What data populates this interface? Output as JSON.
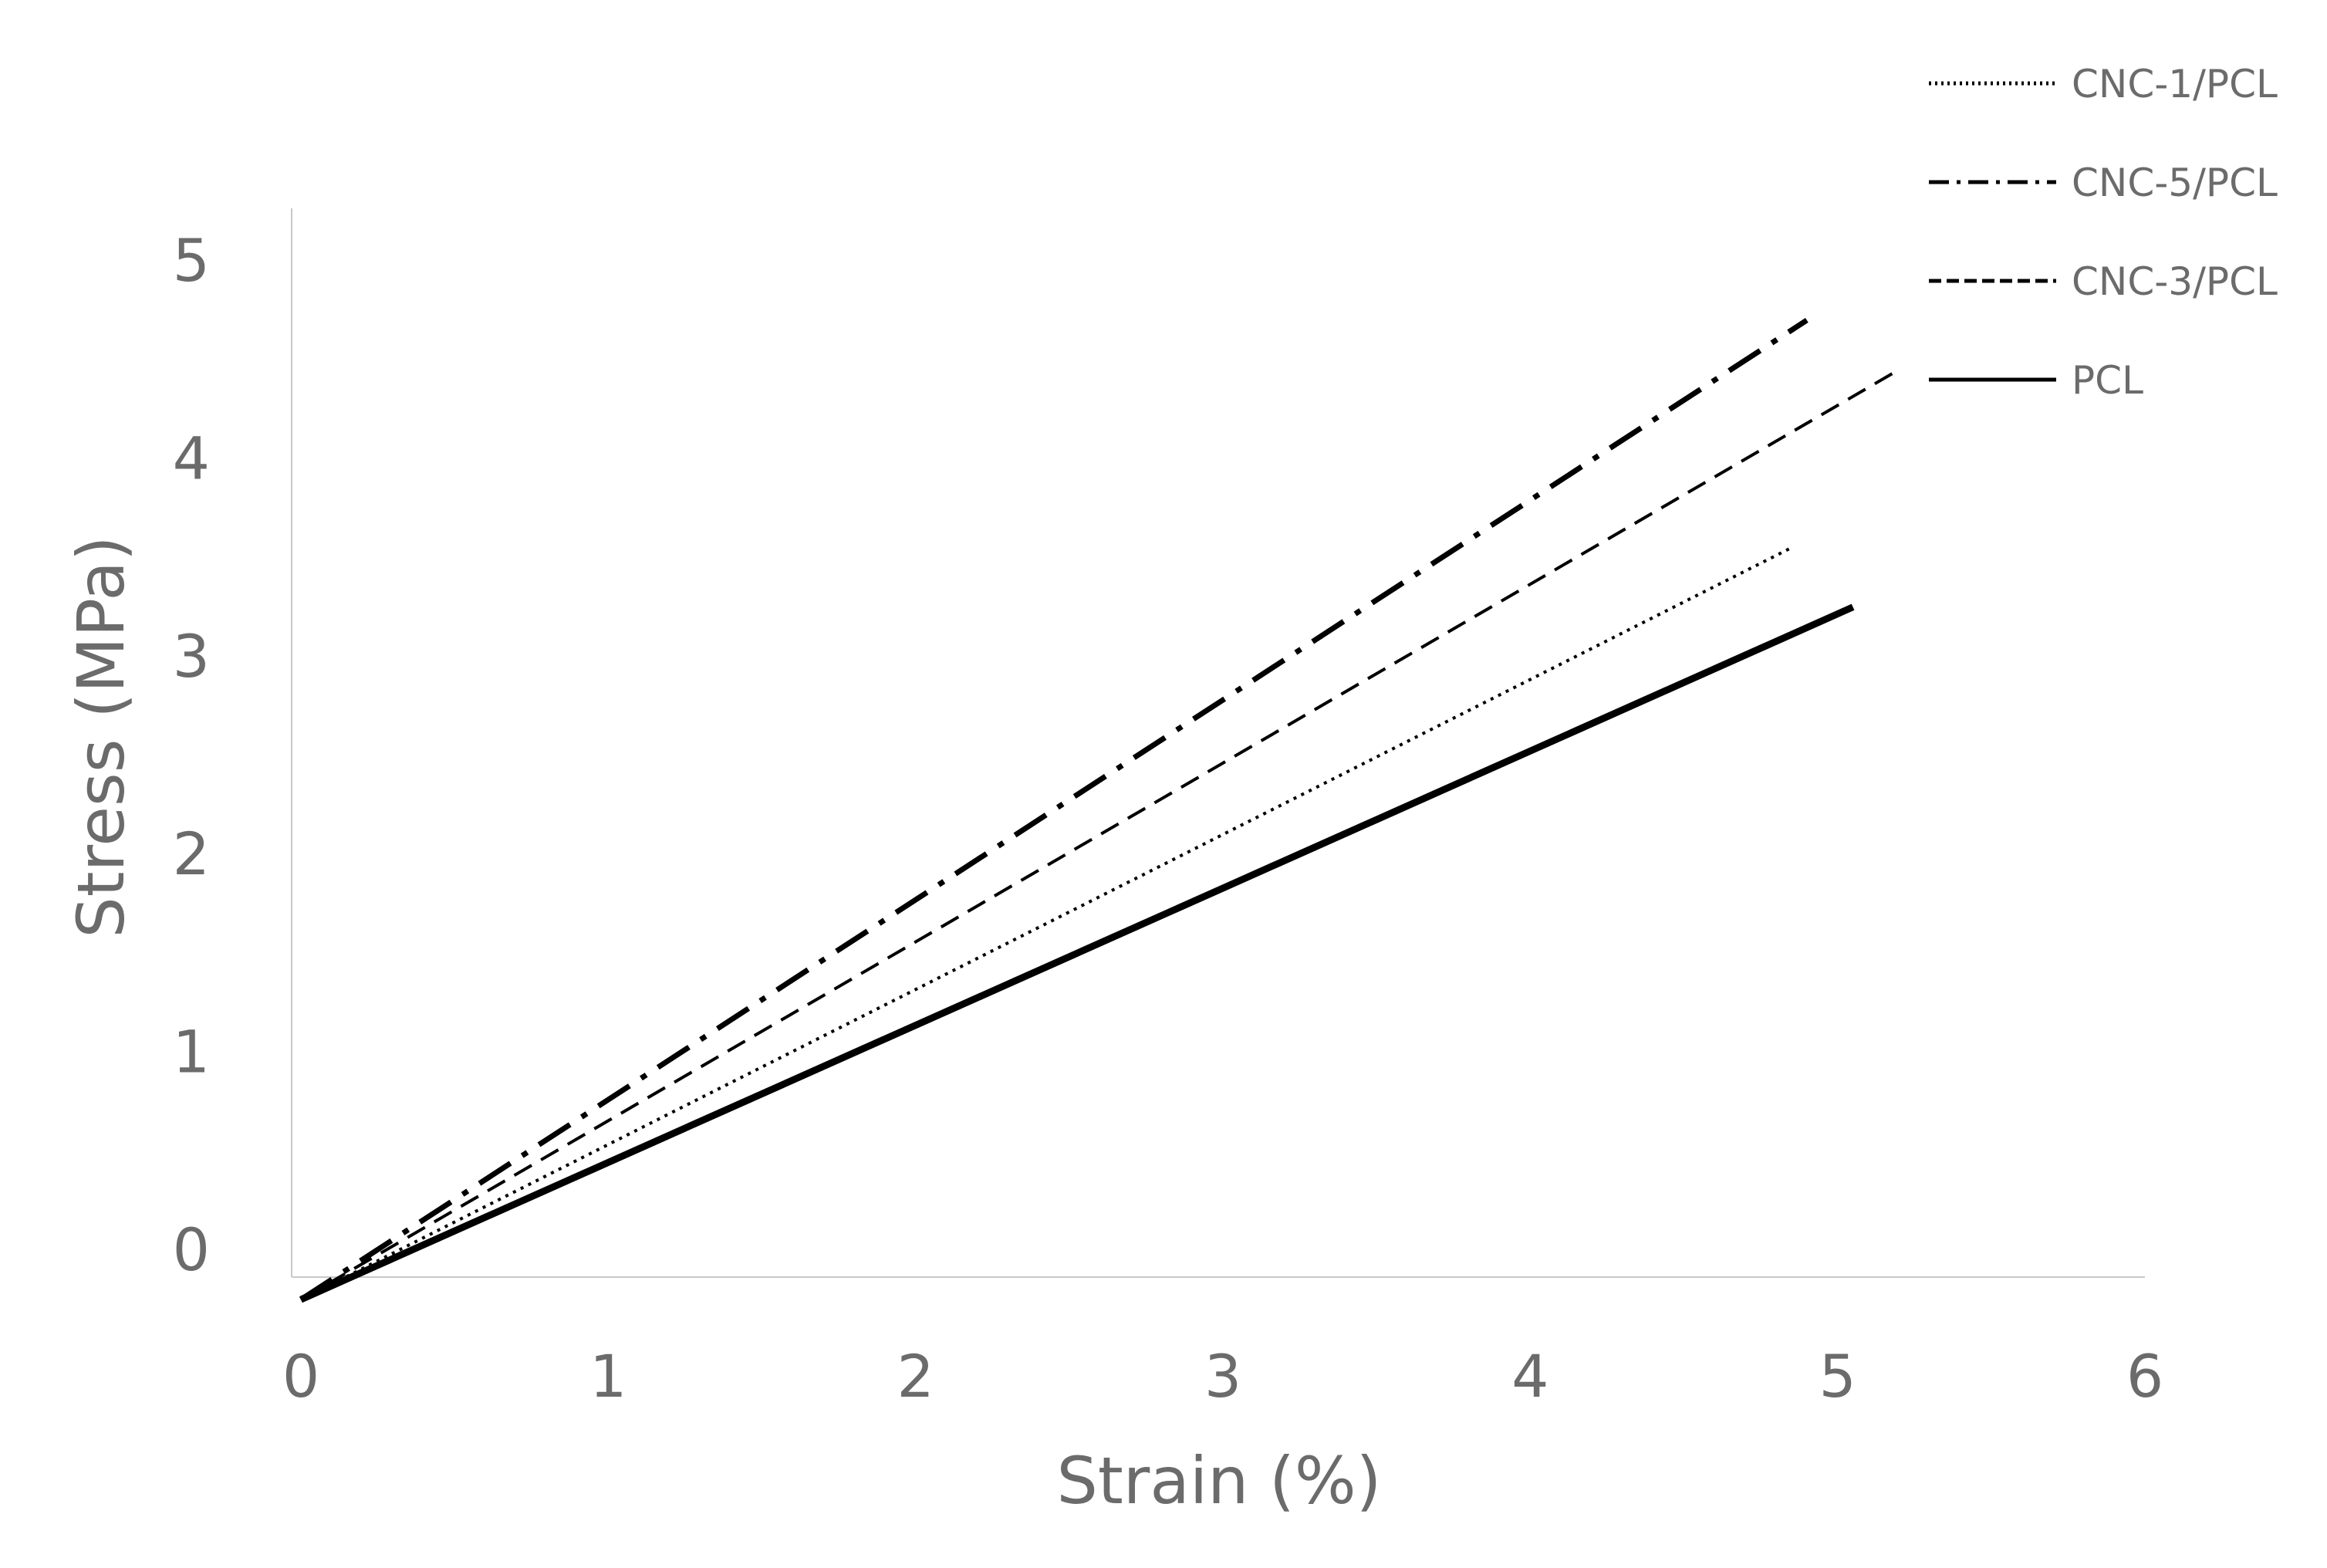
{
  "chart_data": {
    "type": "line",
    "xlabel": "Strain (%)",
    "ylabel": "Stress (MPa)",
    "xlim": [
      0,
      6
    ],
    "ylim": [
      -0.25,
      5
    ],
    "x_ticks": [
      0,
      1,
      2,
      3,
      4,
      5,
      6
    ],
    "y_ticks": [
      0,
      1,
      2,
      3,
      4,
      5
    ],
    "grid": false,
    "legend_position": "top-right",
    "series": [
      {
        "name": "CNC-1/PCL",
        "style": "dotted",
        "color": "#000000",
        "x": [
          0,
          4.85
        ],
        "y": [
          -0.25,
          3.55
        ]
      },
      {
        "name": "CNC-5/PCL",
        "style": "dash-dot",
        "color": "#000000",
        "x": [
          0,
          4.9
        ],
        "y": [
          -0.25,
          4.7
        ]
      },
      {
        "name": "CNC-3/PCL",
        "style": "dashed",
        "color": "#000000",
        "x": [
          0,
          5.2
        ],
        "y": [
          -0.25,
          4.45
        ]
      },
      {
        "name": "PCL",
        "style": "solid",
        "color": "#000000",
        "x": [
          0,
          5.05
        ],
        "y": [
          -0.25,
          3.25
        ]
      }
    ]
  }
}
